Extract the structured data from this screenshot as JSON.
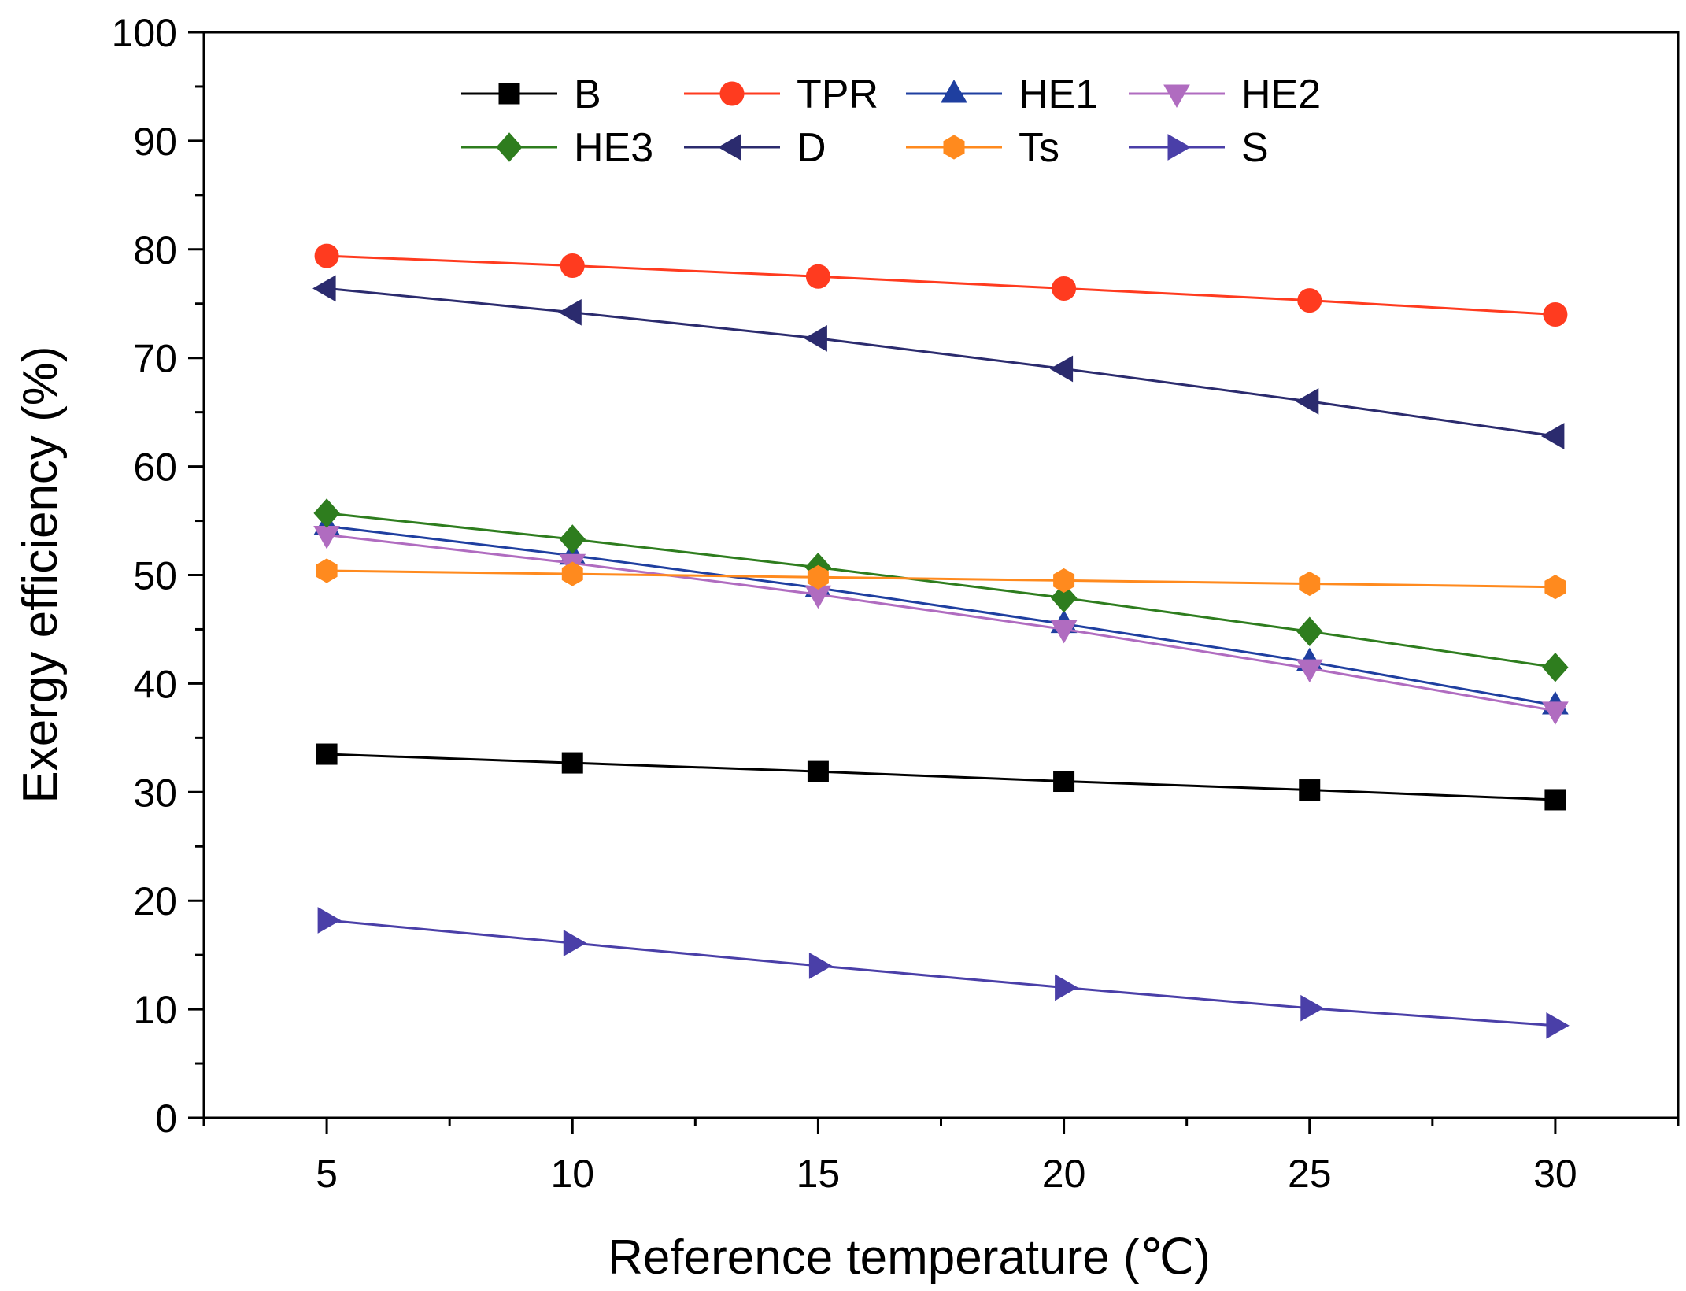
{
  "chart_data": {
    "type": "line",
    "title": "",
    "xlabel": "Reference temperature (℃)",
    "ylabel": "Exergy efficiency (%)",
    "x": [
      5,
      10,
      15,
      20,
      25,
      30
    ],
    "xlim": [
      2.5,
      32.5
    ],
    "ylim": [
      0,
      100
    ],
    "xticks": [
      5,
      10,
      15,
      20,
      25,
      30
    ],
    "yticks": [
      0,
      10,
      20,
      30,
      40,
      50,
      60,
      70,
      80,
      90,
      100
    ],
    "legend_position": "top",
    "grid": false,
    "series": [
      {
        "name": "B",
        "marker": "square",
        "color": "#000000",
        "values": [
          33.5,
          32.7,
          31.9,
          31.0,
          30.2,
          29.3
        ]
      },
      {
        "name": "TPR",
        "marker": "circle",
        "color": "#ff3b1f",
        "values": [
          79.4,
          78.5,
          77.5,
          76.4,
          75.3,
          74.0
        ]
      },
      {
        "name": "HE1",
        "marker": "triangle-up",
        "color": "#1f3fa0",
        "values": [
          54.5,
          51.8,
          48.8,
          45.5,
          42.0,
          38.0
        ]
      },
      {
        "name": "HE2",
        "marker": "triangle-down",
        "color": "#b06cc0",
        "values": [
          53.7,
          51.1,
          48.2,
          45.0,
          41.4,
          37.5
        ]
      },
      {
        "name": "HE3",
        "marker": "diamond",
        "color": "#2e7d1e",
        "values": [
          55.7,
          53.3,
          50.7,
          47.9,
          44.8,
          41.5
        ]
      },
      {
        "name": "D",
        "marker": "triangle-left",
        "color": "#2b2b6e",
        "values": [
          76.4,
          74.2,
          71.8,
          69.0,
          66.0,
          62.8
        ]
      },
      {
        "name": "Ts",
        "marker": "hexagon",
        "color": "#ff8a1e",
        "values": [
          50.4,
          50.1,
          49.8,
          49.5,
          49.2,
          48.9
        ]
      },
      {
        "name": "S",
        "marker": "triangle-right",
        "color": "#4a3fa8",
        "values": [
          18.2,
          16.1,
          14.0,
          12.0,
          10.1,
          8.5
        ]
      }
    ]
  }
}
